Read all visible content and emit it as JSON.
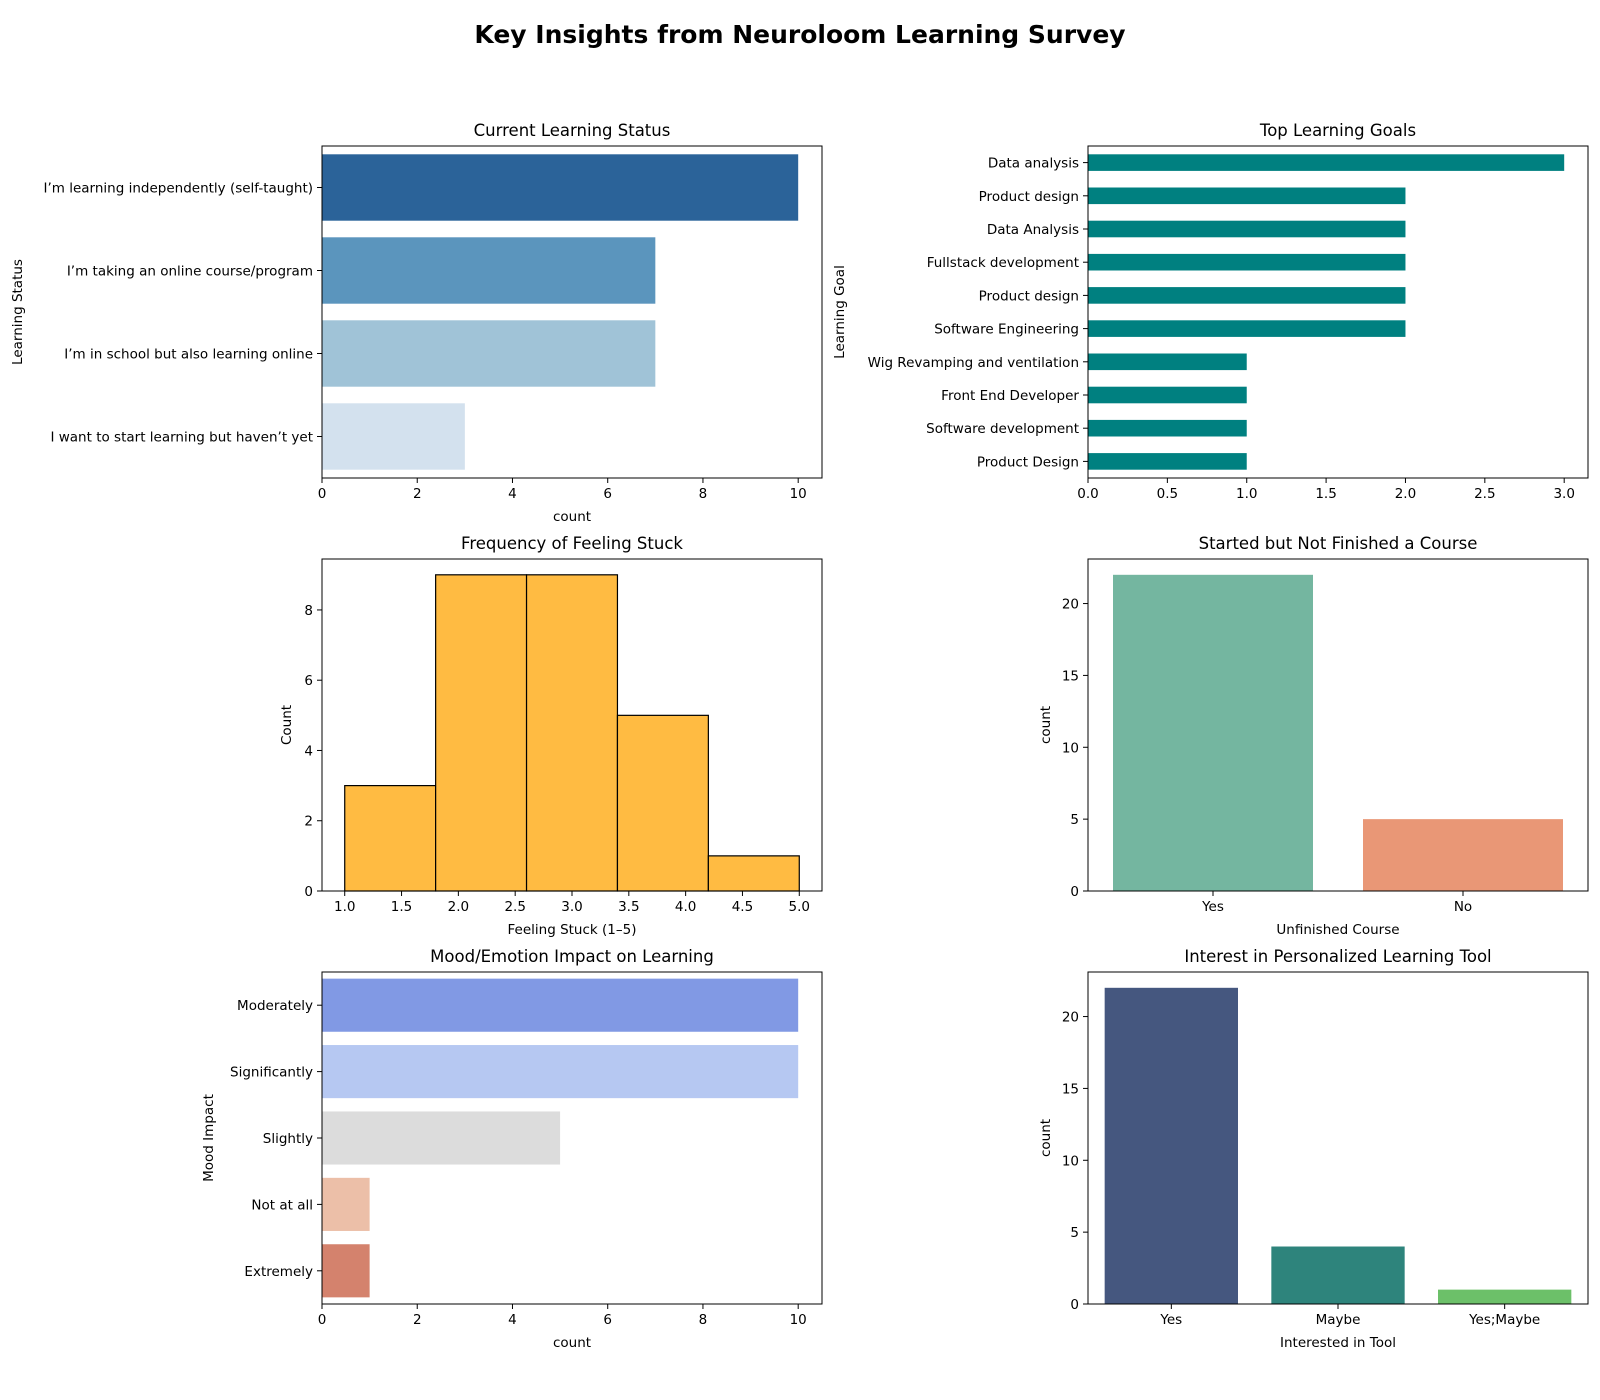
{
  "title": "Key Insights from Neuroloom Learning Survey",
  "chart_data": [
    {
      "type": "bar",
      "orientation": "horizontal",
      "title": "Current Learning Status",
      "xlabel": "count",
      "ylabel": "Learning Status",
      "categories": [
        "I’m learning independently (self-taught)",
        "I’m taking an online course/program",
        "I’m in school but also learning online",
        "I want to start learning but haven’t yet"
      ],
      "values": [
        10,
        7,
        7,
        3
      ],
      "xlim": [
        0,
        10.5
      ],
      "xticks": [
        0,
        2,
        4,
        6,
        8,
        10
      ],
      "colors": [
        "#2b6399",
        "#5b95bd",
        "#a0c3d7",
        "#d3e1ee"
      ],
      "grid": false
    },
    {
      "type": "bar",
      "orientation": "horizontal",
      "title": "Top Learning Goals",
      "xlabel": "",
      "ylabel": "Learning Goal",
      "categories": [
        "Product Design",
        "Software development ",
        "Front End Developer",
        "Wig Revamping and ventilation ",
        "Software Engineering ",
        "Product design ",
        "Fullstack development ",
        "Data Analysis",
        "Product design",
        "Data analysis "
      ],
      "values": [
        1,
        1,
        1,
        1,
        2,
        2,
        2,
        2,
        2,
        3
      ],
      "xlim": [
        0,
        3.15
      ],
      "xticks": [
        0.0,
        0.5,
        1.0,
        1.5,
        2.0,
        2.5,
        3.0
      ],
      "colors": [
        "#008080"
      ],
      "grid": false
    },
    {
      "type": "bar",
      "subtype": "histogram",
      "title": "Frequency of Feeling Stuck",
      "xlabel": "Feeling Stuck (1–5)",
      "ylabel": "Count",
      "bins": [
        [
          1.0,
          1.8
        ],
        [
          1.8,
          2.6
        ],
        [
          2.6,
          3.4
        ],
        [
          3.4,
          4.2
        ],
        [
          4.2,
          5.0
        ]
      ],
      "values": [
        3,
        9,
        9,
        5,
        1
      ],
      "xlim": [
        0.8,
        5.2
      ],
      "ylim": [
        0,
        9.45
      ],
      "xticks": [
        1.0,
        1.5,
        2.0,
        2.5,
        3.0,
        3.5,
        4.0,
        4.5,
        5.0
      ],
      "yticks": [
        0,
        2,
        4,
        6,
        8
      ],
      "colors": [
        "#ffbb42"
      ],
      "grid": false
    },
    {
      "type": "bar",
      "title": "Started but Not Finished a Course",
      "xlabel": "Unfinished Course",
      "ylabel": "count",
      "categories": [
        "Yes",
        "No"
      ],
      "values": [
        22,
        5
      ],
      "ylim": [
        0,
        23.1
      ],
      "yticks": [
        0,
        5,
        10,
        15,
        20
      ],
      "colors": [
        "#74b6a0",
        "#e99776"
      ],
      "grid": false
    },
    {
      "type": "bar",
      "orientation": "horizontal",
      "title": "Mood/Emotion Impact on Learning",
      "xlabel": "count",
      "ylabel": "Mood Impact",
      "categories": [
        "Moderately",
        "Significantly",
        "Slightly",
        "Not at all",
        "Extremely"
      ],
      "values": [
        10,
        10,
        5,
        1,
        1
      ],
      "xlim": [
        0,
        10.5
      ],
      "xticks": [
        0,
        2,
        4,
        6,
        8,
        10
      ],
      "colors": [
        "#8199e4",
        "#b6c8f2",
        "#dcdcdc",
        "#ecbfa8",
        "#d4826d"
      ],
      "grid": false
    },
    {
      "type": "bar",
      "title": "Interest in Personalized Learning Tool",
      "xlabel": "Interested in Tool",
      "ylabel": "count",
      "categories": [
        "Yes",
        "Maybe",
        "Yes;Maybe"
      ],
      "values": [
        22,
        4,
        1
      ],
      "ylim": [
        0,
        23.1
      ],
      "yticks": [
        0,
        5,
        10,
        15,
        20
      ],
      "colors": [
        "#45577f",
        "#2e847c",
        "#6cc069"
      ],
      "grid": false
    }
  ]
}
